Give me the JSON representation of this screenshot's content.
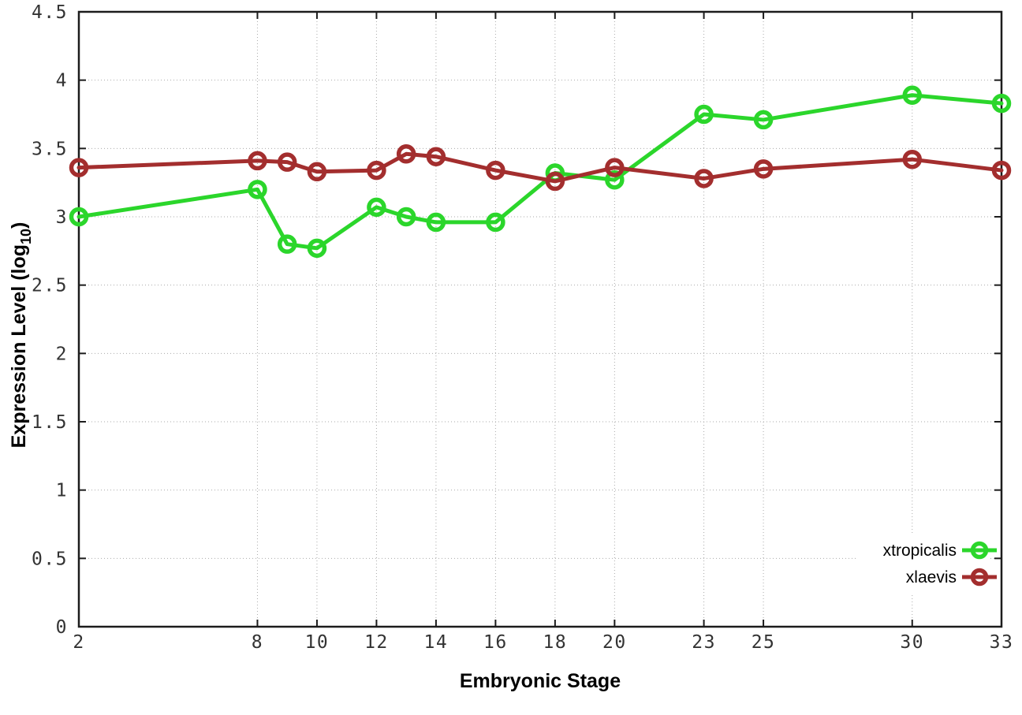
{
  "chart_data": {
    "type": "line",
    "title": "",
    "xlabel": "Embryonic Stage",
    "ylabel": "Expression Level (log10)",
    "ylabel_prefix": "Expression Level (log",
    "ylabel_sub": "10",
    "ylabel_suffix": ")",
    "x": [
      2,
      8,
      9,
      10,
      12,
      13,
      14,
      16,
      18,
      20,
      23,
      25,
      30,
      33
    ],
    "xticks": [
      2,
      8,
      10,
      12,
      14,
      16,
      18,
      20,
      23,
      25,
      30,
      33
    ],
    "yticks": [
      0,
      0.5,
      1,
      1.5,
      2,
      2.5,
      3,
      3.5,
      4,
      4.5
    ],
    "xlim": [
      2,
      33
    ],
    "ylim": [
      0,
      4.5
    ],
    "grid": true,
    "grid_color": "#aaaaaa",
    "border_color": "#1c1c1c",
    "tick_label_color": "#333333",
    "marker": "open-circle",
    "legend_position": "bottom-right",
    "series": [
      {
        "name": "xtropicalis",
        "color": "#2bd62b",
        "values": [
          3.0,
          3.2,
          2.8,
          2.77,
          3.07,
          3.0,
          2.96,
          2.96,
          3.32,
          3.27,
          3.75,
          3.71,
          3.89,
          3.83
        ]
      },
      {
        "name": "xlaevis",
        "color": "#a32e2e",
        "values": [
          3.36,
          3.41,
          3.4,
          3.33,
          3.34,
          3.46,
          3.44,
          3.34,
          3.26,
          3.36,
          3.28,
          3.35,
          3.42,
          3.34
        ]
      }
    ]
  }
}
